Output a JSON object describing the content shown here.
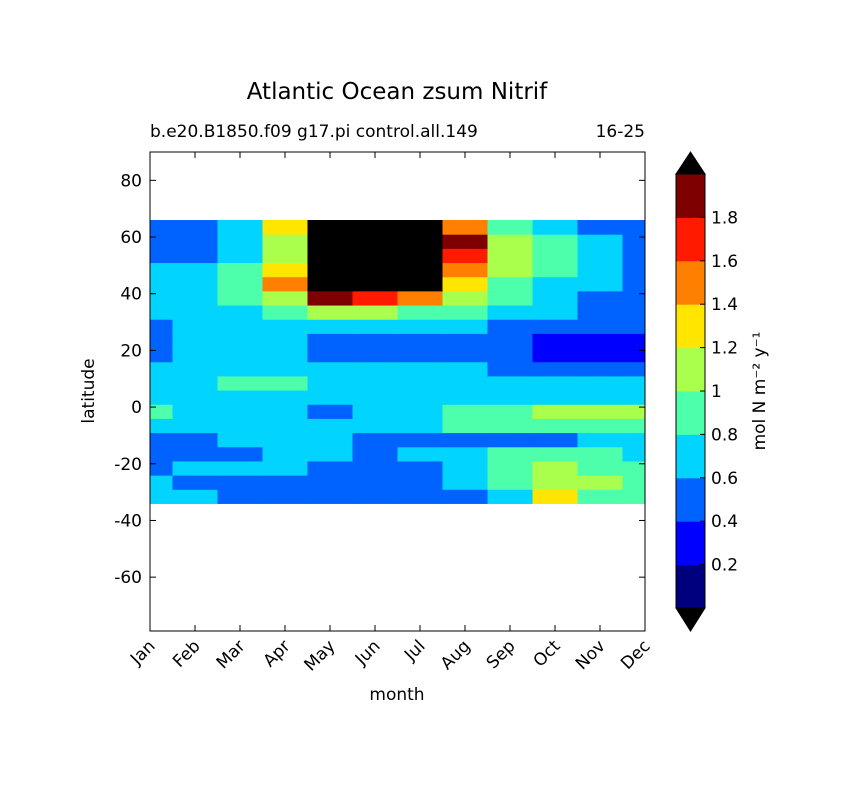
{
  "chart_data": {
    "type": "contourf",
    "title": "Atlantic Ocean zsum Nitrif",
    "subtitle_left": "b.e20.B1850.f09 g17.pi control.all.149",
    "subtitle_right": "16-25",
    "xlabel": "month",
    "ylabel": "latitude",
    "colorbar_label": "mol N m⁻² y⁻¹",
    "x": [
      "Jan",
      "Feb",
      "Mar",
      "Apr",
      "May",
      "Jun",
      "Jul",
      "Aug",
      "Sep",
      "Oct",
      "Nov",
      "Dec"
    ],
    "y": [
      -31.5,
      -26.5,
      -21.5,
      -16.5,
      -11.5,
      -6.5,
      -1.5,
      3.5,
      8.5,
      13.5,
      18.5,
      23.5,
      28.5,
      33.5,
      38.5,
      43.5,
      48.5,
      53.5,
      58.5,
      63.5
    ],
    "z": [
      [
        0.7,
        0.7,
        0.5,
        0.5,
        0.5,
        0.5,
        0.5,
        0.5,
        0.7,
        1.3,
        0.9,
        0.9
      ],
      [
        0.7,
        0.5,
        0.5,
        0.5,
        0.5,
        0.5,
        0.5,
        0.7,
        0.9,
        1.1,
        1.1,
        0.9
      ],
      [
        0.5,
        0.7,
        0.7,
        0.7,
        0.5,
        0.5,
        0.5,
        0.7,
        0.9,
        1.1,
        0.9,
        0.9
      ],
      [
        0.5,
        0.5,
        0.5,
        0.7,
        0.7,
        0.5,
        0.7,
        0.7,
        0.8,
        0.8,
        0.8,
        0.7
      ],
      [
        0.5,
        0.5,
        0.7,
        0.7,
        0.7,
        0.5,
        0.5,
        0.5,
        0.5,
        0.5,
        0.7,
        0.7
      ],
      [
        0.7,
        0.7,
        0.7,
        0.7,
        0.7,
        0.7,
        0.7,
        0.9,
        0.9,
        0.9,
        0.9,
        0.9
      ],
      [
        0.9,
        0.7,
        0.7,
        0.7,
        0.5,
        0.6,
        0.7,
        0.9,
        0.9,
        1.1,
        1.1,
        1.0
      ],
      [
        0.7,
        0.7,
        0.7,
        0.7,
        0.7,
        0.7,
        0.7,
        0.7,
        0.7,
        0.7,
        0.7,
        0.7
      ],
      [
        0.7,
        0.7,
        0.9,
        0.8,
        0.7,
        0.7,
        0.7,
        0.7,
        0.7,
        0.7,
        0.7,
        0.7
      ],
      [
        0.6,
        0.7,
        0.7,
        0.7,
        0.7,
        0.6,
        0.6,
        0.6,
        0.5,
        0.5,
        0.5,
        0.5
      ],
      [
        0.5,
        0.6,
        0.7,
        0.6,
        0.5,
        0.5,
        0.5,
        0.5,
        0.5,
        0.3,
        0.3,
        0.3
      ],
      [
        0.5,
        0.6,
        0.7,
        0.6,
        0.5,
        0.5,
        0.5,
        0.5,
        0.5,
        0.3,
        0.3,
        0.3
      ],
      [
        0.5,
        0.7,
        0.7,
        0.7,
        0.7,
        0.6,
        0.6,
        0.6,
        0.5,
        0.5,
        0.5,
        0.5
      ],
      [
        0.6,
        0.7,
        0.7,
        0.9,
        1.0,
        1.0,
        0.9,
        0.8,
        0.7,
        0.6,
        0.5,
        0.5
      ],
      [
        0.6,
        0.6,
        0.8,
        1.0,
        1.9,
        1.7,
        1.4,
        1.1,
        0.8,
        0.7,
        0.5,
        0.5
      ],
      [
        0.6,
        0.6,
        0.8,
        1.5,
        2.2,
        2.2,
        2.2,
        1.3,
        0.9,
        0.7,
        0.6,
        0.5
      ],
      [
        0.6,
        0.6,
        0.8,
        1.3,
        2.2,
        2.2,
        2.2,
        1.5,
        1.0,
        0.8,
        0.6,
        0.5
      ],
      [
        0.5,
        0.5,
        0.7,
        1.1,
        2.2,
        2.2,
        2.2,
        1.7,
        1.1,
        0.8,
        0.6,
        0.5
      ],
      [
        0.5,
        0.5,
        0.6,
        1.0,
        2.2,
        2.2,
        2.2,
        1.9,
        1.1,
        0.8,
        0.6,
        0.5
      ],
      [
        0.5,
        0.5,
        0.6,
        1.3,
        2.2,
        2.2,
        2.2,
        1.5,
        0.9,
        0.7,
        0.5,
        0.5
      ]
    ],
    "ylim": [
      -79,
      90
    ],
    "yticks": [
      -60,
      -40,
      -20,
      0,
      20,
      40,
      60,
      80
    ],
    "levels": [
      0,
      0.2,
      0.4,
      0.6,
      0.8,
      1,
      1.2,
      1.4,
      1.6,
      1.8,
      2
    ],
    "colors": [
      "#00007f",
      "#0000ff",
      "#0063ff",
      "#00d4ff",
      "#4dffaa",
      "#aaff4d",
      "#ffe500",
      "#ff7f00",
      "#ff1a00",
      "#7f0000"
    ],
    "under_color": "#000000",
    "over_color": "#000000",
    "cticks": [
      0.2,
      0.4,
      0.6,
      0.8,
      1,
      1.2,
      1.4,
      1.6,
      1.8
    ]
  }
}
